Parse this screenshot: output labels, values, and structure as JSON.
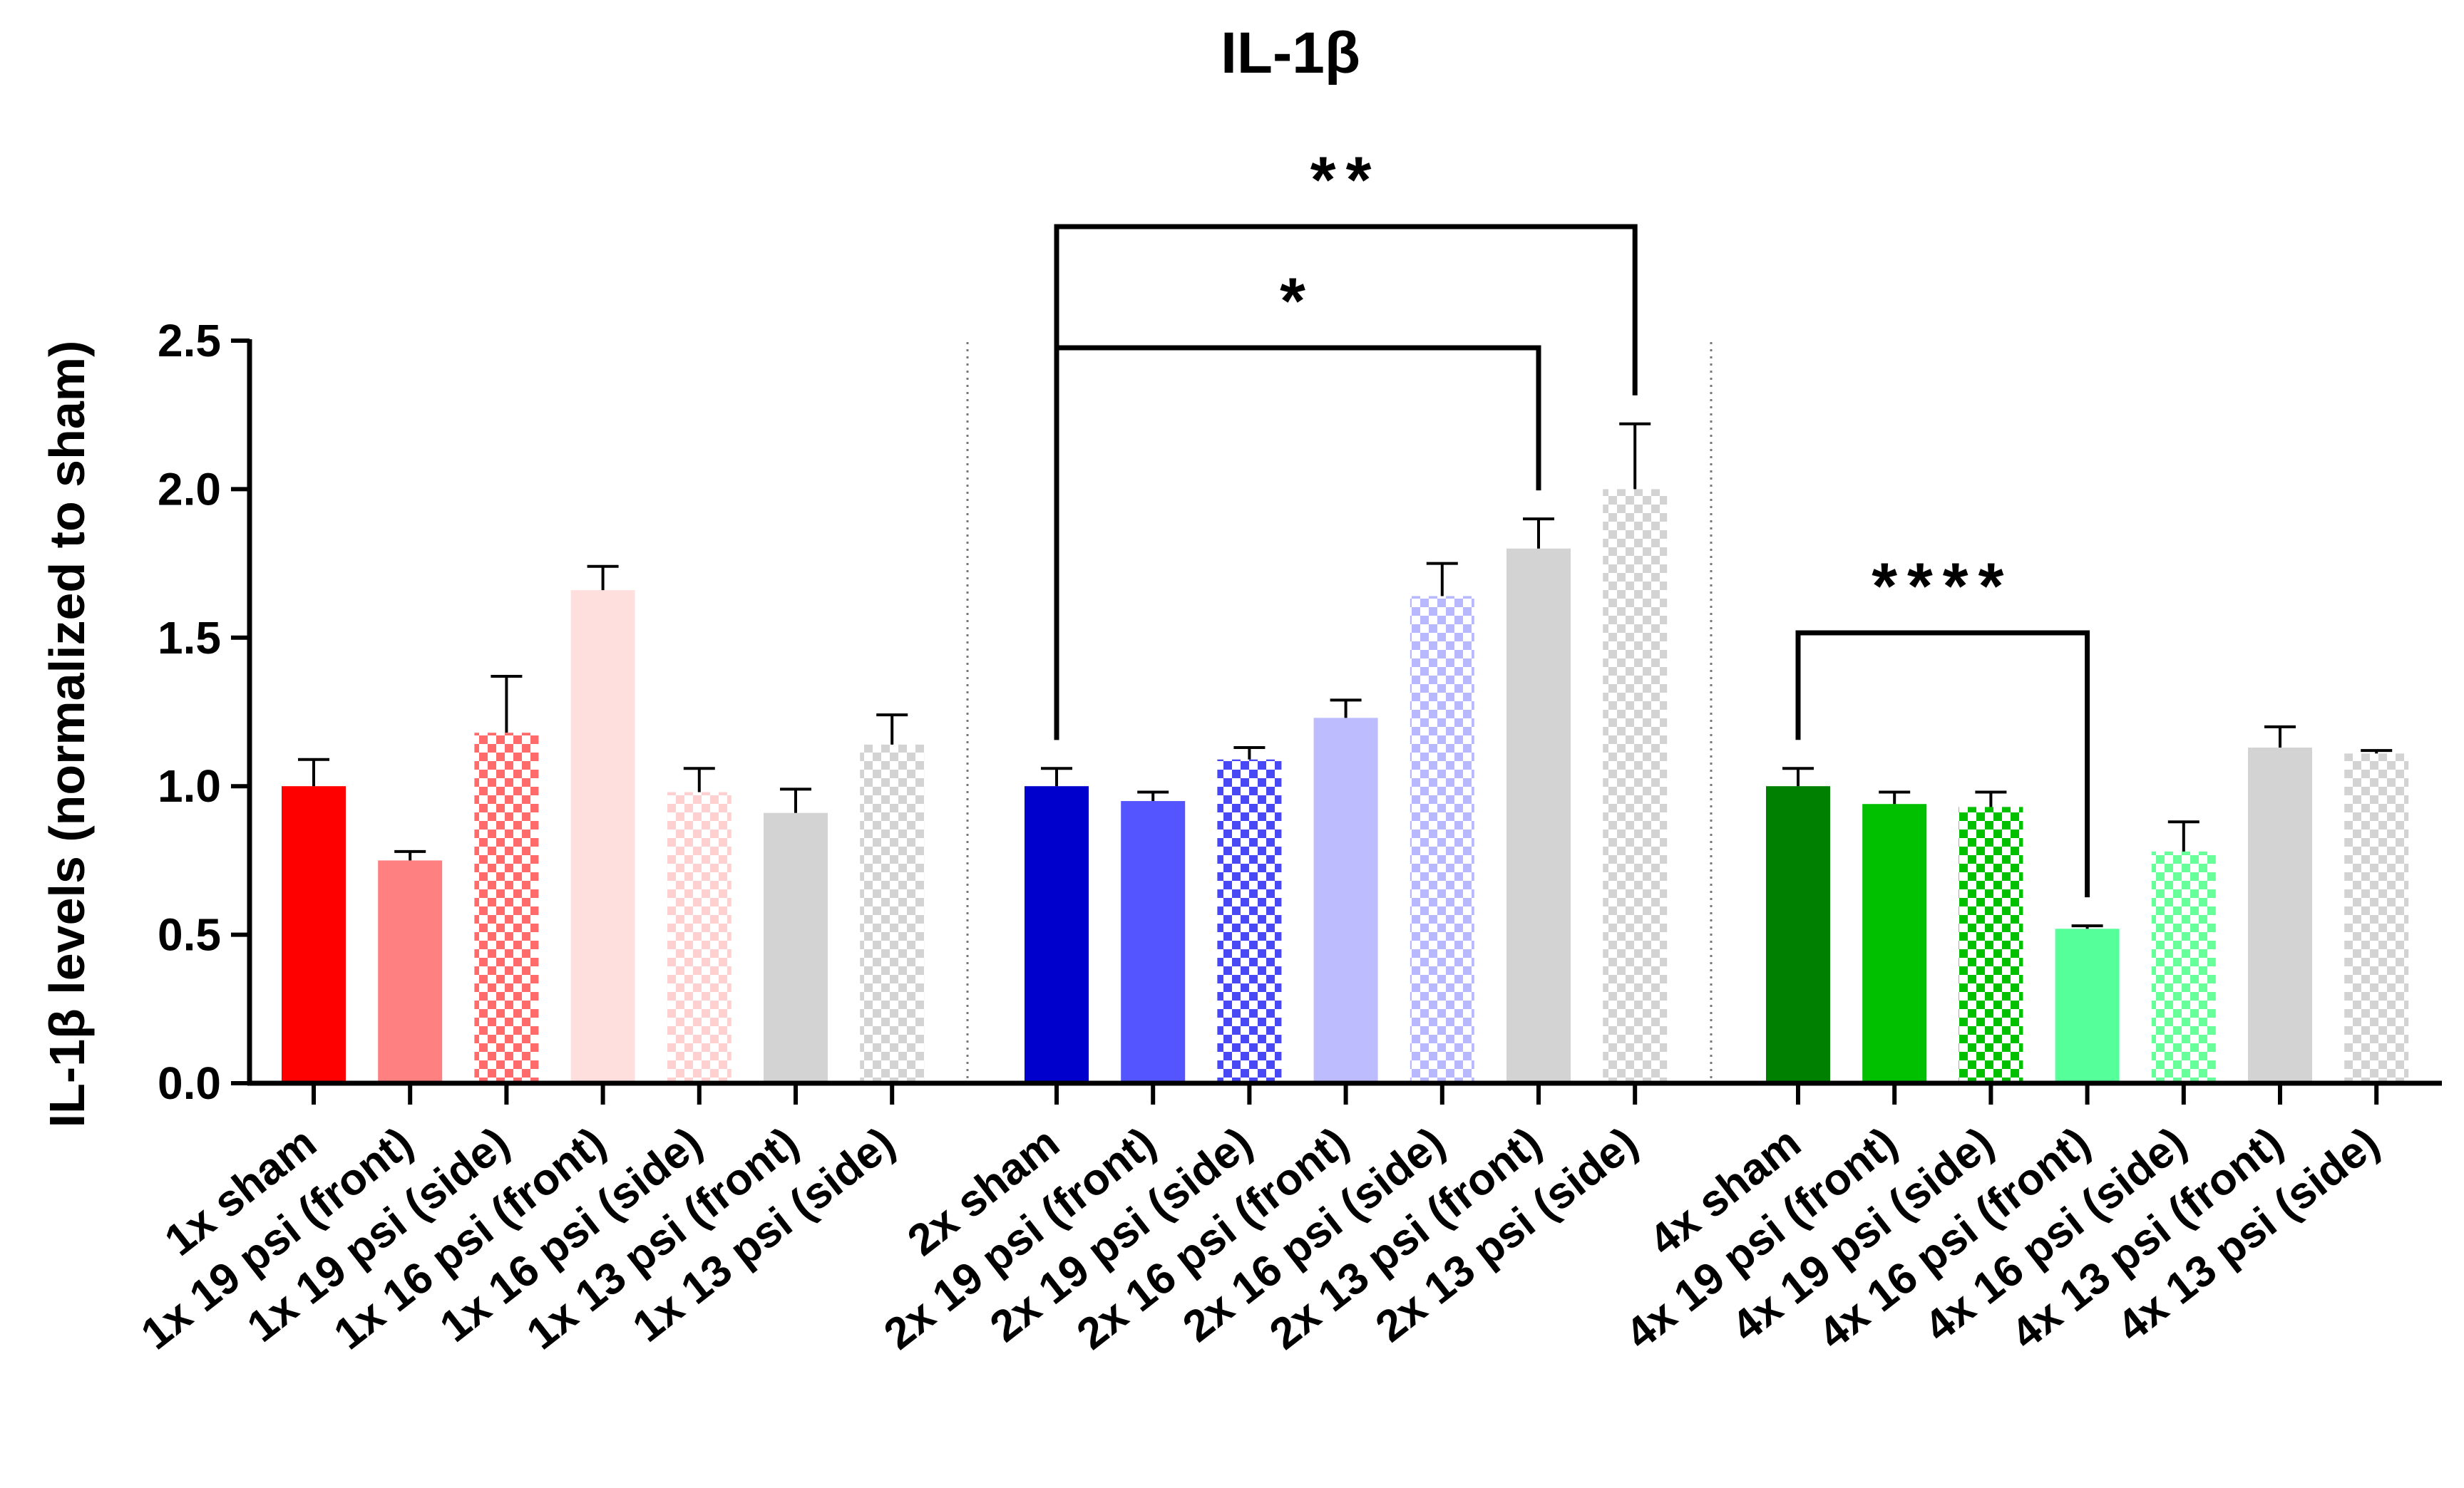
{
  "chart_data": {
    "type": "bar",
    "title": "IL-1β",
    "ylabel": "IL-1β  levels (normalized to sham)",
    "xlabel": "",
    "ylim": [
      0,
      2.5
    ],
    "yticks": [
      "0.0",
      "0.5",
      "1.0",
      "1.5",
      "2.0",
      "2.5"
    ],
    "categories": [
      "1x sham",
      "1x 19 psi (front)",
      "1x 19 psi (side)",
      "1x 16 psi (front)",
      "1x 16 psi (side)",
      "1x 13 psi (front)",
      "1x 13 psi (side)",
      "2x sham",
      "2x 19 psi (front)",
      "2x 19 psi (side)",
      "2x 16 psi (front)",
      "2x 16 psi (side)",
      "2x 13 psi (front)",
      "2x 13 psi (side)",
      "4x sham",
      "4x 19 psi (front)",
      "4x 19 psi (side)",
      "4x 16 psi (front)",
      "4x 16 psi (side)",
      "4x 13 psi (front)",
      "4x 13 psi (side)"
    ],
    "values": [
      1.0,
      0.75,
      1.18,
      1.66,
      0.98,
      0.91,
      1.14,
      1.0,
      0.95,
      1.09,
      1.23,
      1.64,
      1.8,
      2.0,
      1.0,
      0.94,
      0.93,
      0.52,
      0.78,
      1.13,
      1.11
    ],
    "errors": [
      0.09,
      0.03,
      0.19,
      0.08,
      0.08,
      0.08,
      0.1,
      0.06,
      0.03,
      0.04,
      0.06,
      0.11,
      0.1,
      0.22,
      0.06,
      0.04,
      0.05,
      0.01,
      0.1,
      0.07,
      0.01
    ],
    "colors": [
      "#ff0000",
      "#ff8080",
      "#ff6b6b",
      "#ffdede",
      "#ffd0d0",
      "#d3d3d3",
      "#d3d3d3",
      "#0000cc",
      "#5555ff",
      "#4848f5",
      "#bcbcff",
      "#b8b8ff",
      "#d3d3d3",
      "#d3d3d3",
      "#008000",
      "#00c000",
      "#00c000",
      "#55ff99",
      "#66ff99",
      "#d3d3d3",
      "#d3d3d3"
    ],
    "patterns": [
      false,
      false,
      true,
      false,
      true,
      false,
      true,
      false,
      false,
      true,
      false,
      true,
      false,
      true,
      false,
      false,
      true,
      false,
      true,
      false,
      true
    ],
    "groups": [
      0,
      0,
      0,
      0,
      0,
      0,
      0,
      1,
      1,
      1,
      1,
      1,
      1,
      1,
      2,
      2,
      2,
      2,
      2,
      2,
      2
    ],
    "significance": [
      {
        "from": 7,
        "to": 13,
        "label": "**"
      },
      {
        "from": 7,
        "to": 12,
        "label": "*"
      },
      {
        "from": 14,
        "to": 17,
        "label": "****"
      }
    ]
  }
}
